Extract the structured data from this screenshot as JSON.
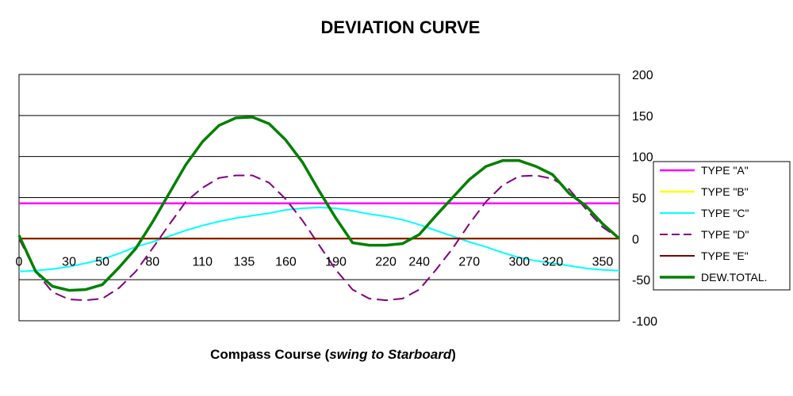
{
  "chart_data": {
    "type": "line",
    "title": "DEVIATION CURVE",
    "xlabel_parts": [
      "Compass Course (",
      "swing to Starboard",
      ")"
    ],
    "ylabel": "",
    "x_ticks": [
      0,
      30,
      50,
      80,
      110,
      135,
      160,
      190,
      220,
      240,
      270,
      300,
      320,
      350
    ],
    "y_ticks": [
      -100,
      -50,
      0,
      50,
      100,
      150,
      200
    ],
    "xlim": [
      0,
      360
    ],
    "ylim": [
      -100,
      200
    ],
    "grid": "horizontal",
    "legend_position": "right",
    "x": [
      0,
      10,
      20,
      30,
      40,
      50,
      60,
      70,
      80,
      90,
      100,
      110,
      120,
      130,
      140,
      150,
      160,
      170,
      180,
      190,
      200,
      210,
      220,
      230,
      240,
      250,
      260,
      270,
      280,
      290,
      300,
      310,
      320,
      330,
      340,
      350,
      360
    ],
    "series": [
      {
        "name": "TYPE \"A\"",
        "color": "#ff00ff",
        "dash": "solid",
        "width": 2.5,
        "values": [
          43,
          43,
          43,
          43,
          43,
          43,
          43,
          43,
          43,
          43,
          43,
          43,
          43,
          43,
          43,
          43,
          43,
          43,
          43,
          43,
          43,
          43,
          43,
          43,
          43,
          43,
          43,
          43,
          43,
          43,
          43,
          43,
          43,
          43,
          43,
          43,
          43
        ]
      },
      {
        "name": "TYPE \"B\"",
        "color": "#ffff00",
        "dash": "solid",
        "width": 2.5,
        "values": [
          0,
          0,
          0,
          0,
          0,
          0,
          0,
          0,
          0,
          0,
          0,
          0,
          0,
          0,
          0,
          0,
          0,
          0,
          0,
          0,
          0,
          0,
          0,
          0,
          0,
          0,
          0,
          0,
          0,
          0,
          0,
          0,
          0,
          0,
          0,
          0,
          0
        ]
      },
      {
        "name": "TYPE \"C\"",
        "color": "#00ffff",
        "dash": "solid",
        "width": 2,
        "values": [
          -40,
          -39,
          -37,
          -34,
          -30,
          -25,
          -18,
          -10,
          -4,
          3,
          10,
          16,
          21,
          25,
          28,
          31,
          35,
          37,
          38,
          37,
          34,
          30,
          27,
          23,
          17,
          10,
          3,
          -4,
          -10,
          -17,
          -23,
          -27,
          -30,
          -33,
          -36,
          -38,
          -39
        ]
      },
      {
        "name": "TYPE \"D\"",
        "color": "#800080",
        "dash": "dashed",
        "width": 2,
        "values": [
          0,
          -40,
          -65,
          -74,
          -75,
          -73,
          -60,
          -40,
          -12,
          17,
          45,
          62,
          74,
          77,
          77,
          68,
          48,
          22,
          -8,
          -38,
          -62,
          -73,
          -75,
          -73,
          -62,
          -38,
          -12,
          18,
          45,
          65,
          76,
          77,
          73,
          60,
          36,
          14,
          0
        ]
      },
      {
        "name": "TYPE \"E\"",
        "color": "#800000",
        "dash": "solid",
        "width": 2,
        "values": [
          0,
          0,
          0,
          0,
          0,
          0,
          0,
          0,
          0,
          0,
          0,
          0,
          0,
          0,
          0,
          0,
          0,
          0,
          0,
          0,
          0,
          0,
          0,
          0,
          0,
          0,
          0,
          0,
          0,
          0,
          0,
          0,
          0,
          0,
          0,
          0,
          0
        ]
      },
      {
        "name": "DEW.TOTAL.",
        "color": "#008000",
        "dash": "solid",
        "width": 3.5,
        "values": [
          4,
          -40,
          -58,
          -63,
          -62,
          -56,
          -35,
          -12,
          20,
          55,
          90,
          118,
          138,
          147,
          148,
          140,
          120,
          93,
          58,
          25,
          -5,
          -8,
          -8,
          -6,
          5,
          28,
          50,
          72,
          88,
          95,
          95,
          88,
          78,
          55,
          40,
          18,
          0
        ]
      }
    ]
  }
}
